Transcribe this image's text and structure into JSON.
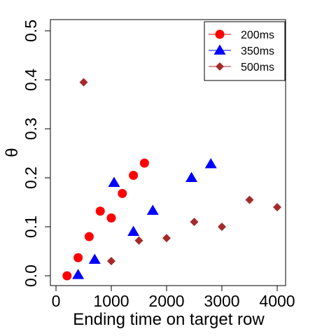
{
  "chart_data": {
    "type": "scatter",
    "title": "",
    "xlabel": "Ending time on target row",
    "ylabel": "θ",
    "xlim": [
      0,
      4150
    ],
    "ylim": [
      -0.01,
      0.52
    ],
    "x_ticks": [
      0,
      1000,
      2000,
      3000,
      4000
    ],
    "y_ticks": [
      0.0,
      0.1,
      0.2,
      0.3,
      0.4,
      0.5
    ],
    "x_tick_labels": [
      "0",
      "1000",
      "2000",
      "3000",
      "4000"
    ],
    "y_tick_labels": [
      "0.0",
      "0.1",
      "0.2",
      "0.3",
      "0.4",
      "0.5"
    ],
    "grid": false,
    "legend_position": "top-right",
    "series": [
      {
        "name": "200ms",
        "marker": "circle",
        "color": "#ff0000",
        "points": [
          [
            200,
            0.0
          ],
          [
            400,
            0.037
          ],
          [
            600,
            0.08
          ],
          [
            800,
            0.132
          ],
          [
            1000,
            0.118
          ],
          [
            1200,
            0.168
          ],
          [
            1400,
            0.205
          ],
          [
            1600,
            0.23
          ]
        ]
      },
      {
        "name": "350ms",
        "marker": "triangle",
        "color": "#0000ff",
        "points": [
          [
            400,
            0.002
          ],
          [
            700,
            0.033
          ],
          [
            1050,
            0.19
          ],
          [
            1400,
            0.09
          ],
          [
            1750,
            0.133
          ],
          [
            2450,
            0.2
          ],
          [
            2800,
            0.228
          ]
        ]
      },
      {
        "name": "500ms",
        "marker": "diamond",
        "color": "#a52a2a",
        "points": [
          [
            500,
            0.395
          ],
          [
            1000,
            0.03
          ],
          [
            1500,
            0.072
          ],
          [
            2000,
            0.077
          ],
          [
            2500,
            0.11
          ],
          [
            3000,
            0.1
          ],
          [
            3500,
            0.155
          ],
          [
            4000,
            0.14
          ]
        ]
      }
    ]
  }
}
